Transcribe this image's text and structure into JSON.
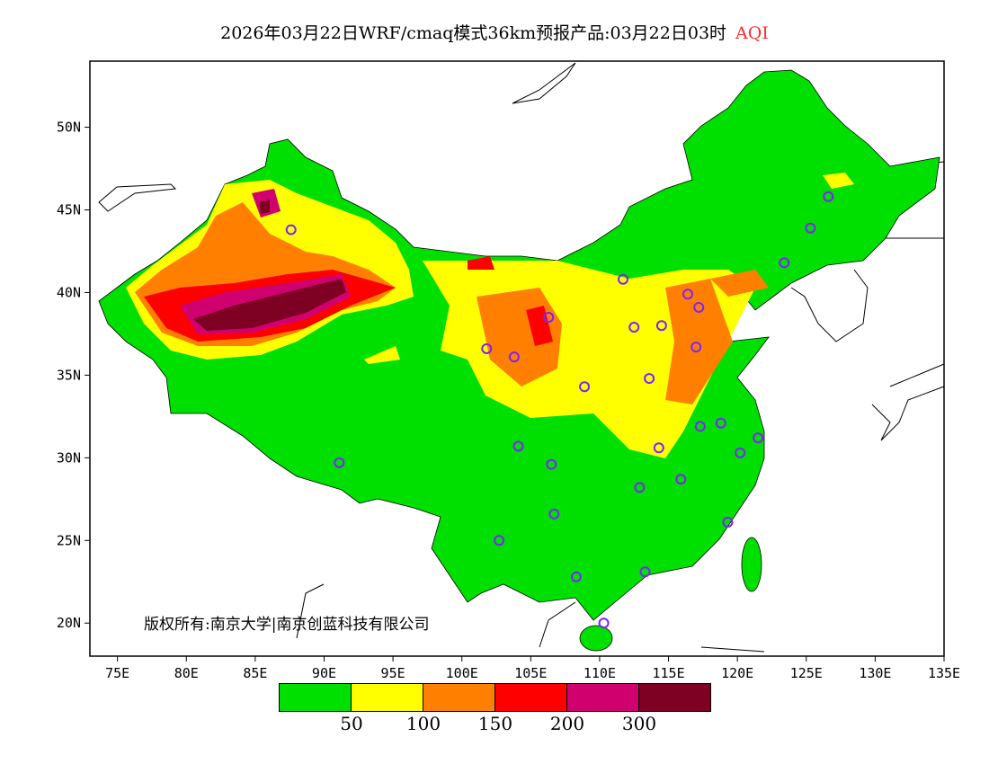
{
  "title": {
    "main": "2026年03月22日WRF/cmaq模式36km预报产品:03月22日03时",
    "variable": "AQI"
  },
  "axes": {
    "lon_ticks": [
      "75E",
      "80E",
      "85E",
      "90E",
      "95E",
      "100E",
      "105E",
      "110E",
      "115E",
      "120E",
      "125E",
      "130E",
      "135E"
    ],
    "lat_ticks": [
      "50N",
      "45N",
      "40N",
      "35N",
      "30N",
      "25N",
      "20N"
    ],
    "lon_range": [
      73,
      135
    ],
    "lat_range": [
      18,
      54
    ]
  },
  "copyright": "版权所有:南京大学|南京创蓝科技有限公司",
  "legend": {
    "colors": [
      "#00e000",
      "#ffff00",
      "#ff8000",
      "#ff0000",
      "#d0006e",
      "#7e0023"
    ],
    "labels": [
      "50",
      "100",
      "150",
      "200",
      "300"
    ]
  },
  "stations": [
    [
      87.6,
      43.8
    ],
    [
      91.1,
      29.7
    ],
    [
      101.8,
      36.6
    ],
    [
      103.8,
      36.1
    ],
    [
      106.3,
      38.5
    ],
    [
      108.9,
      34.3
    ],
    [
      111.7,
      40.8
    ],
    [
      112.5,
      37.9
    ],
    [
      114.5,
      38.0
    ],
    [
      116.4,
      39.9
    ],
    [
      117.2,
      39.1
    ],
    [
      117.0,
      36.7
    ],
    [
      113.6,
      34.8
    ],
    [
      117.3,
      31.9
    ],
    [
      114.3,
      30.6
    ],
    [
      112.9,
      28.2
    ],
    [
      115.9,
      28.7
    ],
    [
      118.8,
      32.1
    ],
    [
      120.2,
      30.3
    ],
    [
      121.5,
      31.2
    ],
    [
      119.3,
      26.1
    ],
    [
      113.3,
      23.1
    ],
    [
      108.3,
      22.8
    ],
    [
      110.3,
      20.0
    ],
    [
      106.7,
      26.6
    ],
    [
      102.7,
      25.0
    ],
    [
      104.1,
      30.7
    ],
    [
      106.5,
      29.6
    ],
    [
      123.4,
      41.8
    ],
    [
      125.3,
      43.9
    ],
    [
      126.6,
      45.8
    ]
  ]
}
